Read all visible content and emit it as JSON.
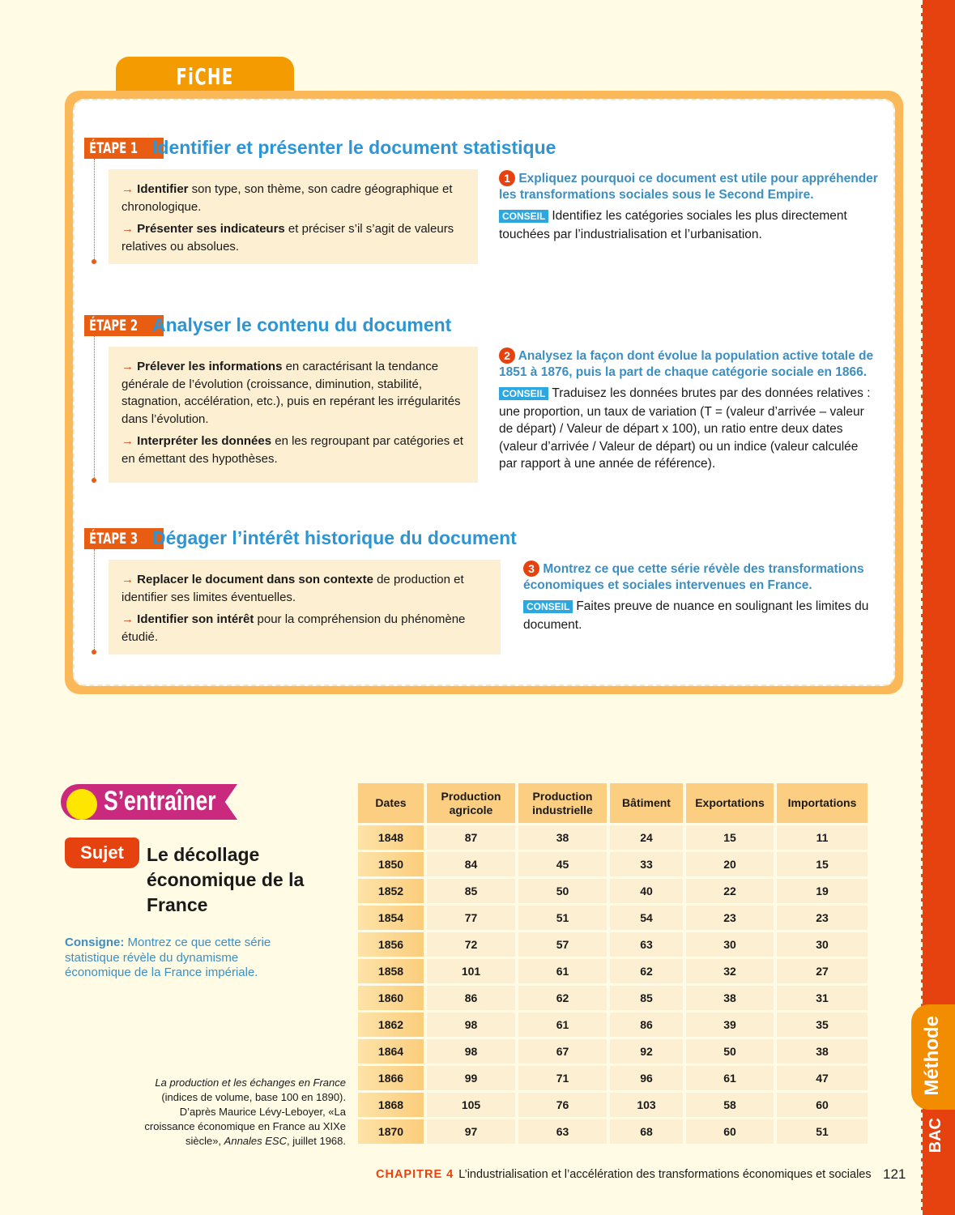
{
  "fiche_label": "FiCHE MÉTHODE",
  "steps": [
    {
      "badge": "ÉTAPE 1",
      "title": "Identifier et présenter le document statistique",
      "points": [
        {
          "bold": "Identifier",
          "text": " son type, son thème, son cadre géographique et chronologique."
        },
        {
          "bold": "Présenter ses indicateurs",
          "text": " et préciser s’il s’agit de valeurs relatives ou absolues."
        }
      ],
      "question_num": "1",
      "question": "Expliquez pourquoi ce document est utile pour appréhender les transformations sociales sous le Second Empire.",
      "conseil": "CONSEIL",
      "advice": "Identifiez les catégories sociales les plus directement touchées par l’industrialisation et l’urbanisation."
    },
    {
      "badge": "ÉTAPE 2",
      "title": "Analyser le contenu du document",
      "points": [
        {
          "bold": "Prélever les informations",
          "text": " en caractérisant la tendance générale de l’évolution (croissance, diminution, stabilité, stagnation, accélération, etc.), puis en repérant les irrégularités dans l’évolution."
        },
        {
          "bold": "Interpréter les données",
          "text": " en les regroupant par catégories et en émettant des hypothèses."
        }
      ],
      "question_num": "2",
      "question": "Analysez la façon dont évolue la population active totale de 1851 à 1876, puis la part de chaque catégorie sociale en 1866.",
      "conseil": "CONSEIL",
      "advice": "Traduisez les données brutes par des données relatives : une proportion, un taux de variation (T = (valeur d’arrivée – valeur de départ) / Valeur de départ x 100), un ratio entre deux dates (valeur d’arrivée / Valeur de départ) ou un indice (valeur calculée par rapport à une année de référence)."
    },
    {
      "badge": "ÉTAPE 3",
      "title": "Dégager l’intérêt historique du document",
      "points": [
        {
          "bold": "Replacer le document dans son contexte",
          "text": " de production et identifier ses limites éventuelles."
        },
        {
          "bold": "Identifier son intérêt",
          "text": " pour la compréhension du phénomène étudié."
        }
      ],
      "question_num": "3",
      "question": "Montrez ce que cette série révèle des transformations économiques et sociales intervenues en France.",
      "conseil": "CONSEIL",
      "advice": "Faites preuve de nuance en soulignant les limites du document."
    }
  ],
  "entrainer": {
    "label": "S’entraîner",
    "sujet": "Sujet",
    "title": "Le décollage économique de la France",
    "consigne_label": "Consigne:",
    "consigne": " Montrez ce que cette série statistique révèle du dynamisme économique de la France impériale."
  },
  "caption": {
    "title": "La production et les échanges en France",
    "text": " (indices de volume, base 100 en 1890). D’après Maurice Lévy-Leboyer, «La croissance économique en France au XIXe siècle», ",
    "journal": "Annales ESC",
    "date": ", juillet 1968."
  },
  "table": {
    "headers": [
      "Dates",
      "Production agricole",
      "Production industrielle",
      "Bâtiment",
      "Exportations",
      "Importations"
    ],
    "rows": [
      [
        "1848",
        "87",
        "38",
        "24",
        "15",
        "11"
      ],
      [
        "1850",
        "84",
        "45",
        "33",
        "20",
        "15"
      ],
      [
        "1852",
        "85",
        "50",
        "40",
        "22",
        "19"
      ],
      [
        "1854",
        "77",
        "51",
        "54",
        "23",
        "23"
      ],
      [
        "1856",
        "72",
        "57",
        "63",
        "30",
        "30"
      ],
      [
        "1858",
        "101",
        "61",
        "62",
        "32",
        "27"
      ],
      [
        "1860",
        "86",
        "62",
        "85",
        "38",
        "31"
      ],
      [
        "1862",
        "98",
        "61",
        "86",
        "39",
        "35"
      ],
      [
        "1864",
        "98",
        "67",
        "92",
        "50",
        "38"
      ],
      [
        "1866",
        "99",
        "71",
        "96",
        "61",
        "47"
      ],
      [
        "1868",
        "105",
        "76",
        "103",
        "58",
        "60"
      ],
      [
        "1870",
        "97",
        "63",
        "68",
        "60",
        "51"
      ]
    ]
  },
  "footer": {
    "chapter": "CHAPITRE 4",
    "title": "L’industrialisation et l’accélération des transformations économiques et sociales",
    "page": "121"
  },
  "side_tab": {
    "methode": "Méthode",
    "bac": "BAC"
  },
  "colors": {
    "orange": "#f39b00",
    "red": "#e5420f",
    "blue": "#2d95d3",
    "magenta": "#c92a7d"
  }
}
